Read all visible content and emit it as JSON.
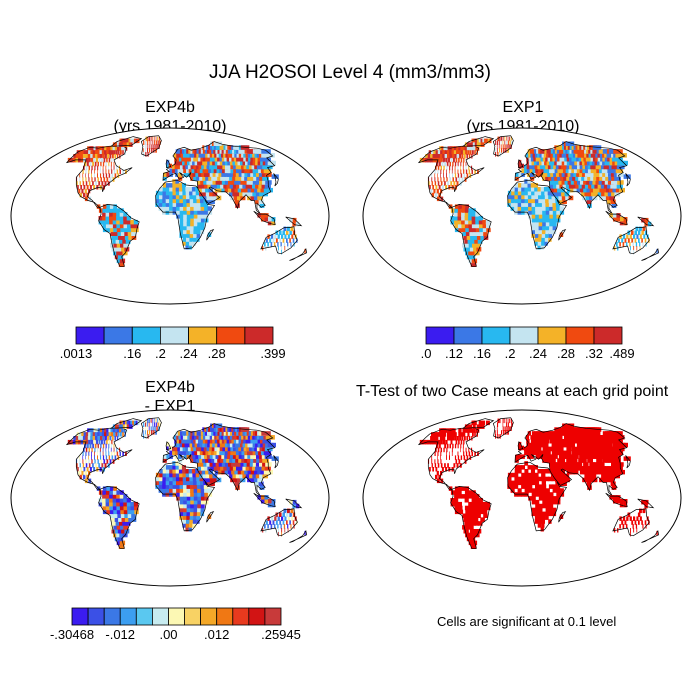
{
  "figure": {
    "title": "JJA H2OSOI Level 4 (mm3/mm3)"
  },
  "panels": [
    {
      "title": "EXP4b",
      "subtitle": "(yrs 1981-2010)"
    },
    {
      "title": "EXP1",
      "subtitle": "(yrs 1981-2010)"
    },
    {
      "title": "EXP4b",
      "subtitle": "- EXP1"
    },
    {
      "title": "T-Test of two Case means at each grid point"
    }
  ],
  "footnote": "Cells are significant at 0.1 level",
  "chart_data": [
    {
      "type": "heatmap",
      "title": "EXP4b",
      "subtitle": "(yrs 1981-2010)",
      "colorbar": {
        "colors": [
          "#3b1cf0",
          "#3b78e6",
          "#28b8f0",
          "#c4e4f0",
          "#f4b228",
          "#f04a10",
          "#cc2a2a"
        ],
        "labels": [
          ".0013",
          ".16",
          ".2",
          ".24",
          ".28",
          ".399"
        ]
      }
    },
    {
      "type": "heatmap",
      "title": "EXP1",
      "subtitle": "(yrs 1981-2010)",
      "colorbar": {
        "colors": [
          "#3b1cf0",
          "#3b78e6",
          "#28b8f0",
          "#c4e4f0",
          "#f4b228",
          "#f04a10",
          "#cc2a2a"
        ],
        "labels": [
          ".0",
          ".12",
          ".16",
          ".2",
          ".24",
          ".28",
          ".32",
          ".489"
        ]
      }
    },
    {
      "type": "heatmap",
      "title": "EXP4b",
      "subtitle": "- EXP1",
      "colorbar": {
        "colors": [
          "#3b1cf0",
          "#3b50e6",
          "#3b78e6",
          "#3c9ef0",
          "#5ac8f0",
          "#c8ecf0",
          "#fcf8b4",
          "#f8d264",
          "#f4a828",
          "#f07814",
          "#e83a1e",
          "#d21414",
          "#c83a3a"
        ],
        "labels": [
          "-.30468",
          "-.012",
          ".00",
          ".012",
          ".25945"
        ]
      }
    },
    {
      "type": "heatmap",
      "title": "T-Test of two Case means at each grid point",
      "colorbar": null,
      "significance_color": "#ee0000",
      "note": "Cells are significant at 0.1 level"
    }
  ]
}
